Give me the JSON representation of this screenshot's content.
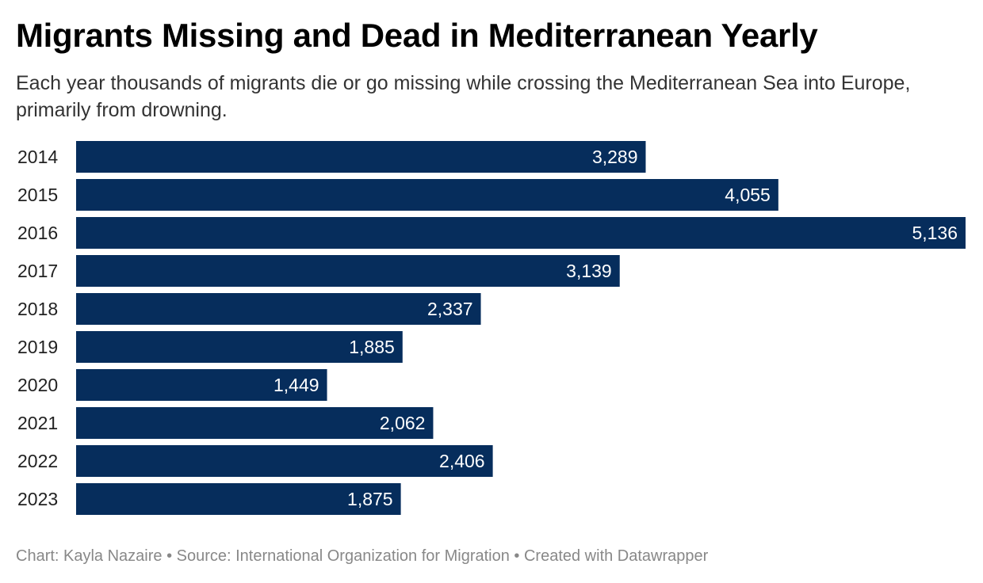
{
  "header": {
    "title": "Migrants Missing and Dead in Mediterranean Yearly",
    "subtitle": "Each year thousands of migrants die or go missing while crossing the Mediterranean Sea into Europe, primarily from drowning."
  },
  "footer": {
    "credit": "Chart: Kayla Nazaire • Source: International Organization for Migration • Created with Datawrapper"
  },
  "colors": {
    "bar": "#062d5c",
    "bar_label": "#ffffff",
    "category_label": "#222222"
  },
  "chart_data": {
    "type": "bar",
    "orientation": "horizontal",
    "categories": [
      "2014",
      "2015",
      "2016",
      "2017",
      "2018",
      "2019",
      "2020",
      "2021",
      "2022",
      "2023"
    ],
    "values": [
      3289,
      4055,
      5136,
      3139,
      2337,
      1885,
      1449,
      2062,
      2406,
      1875
    ],
    "value_labels": [
      "3,289",
      "4,055",
      "5,136",
      "3,139",
      "2,337",
      "1,885",
      "1,449",
      "2,062",
      "2,406",
      "1,875"
    ],
    "xlim": [
      0,
      5136
    ],
    "grid": false,
    "legend": "none"
  }
}
